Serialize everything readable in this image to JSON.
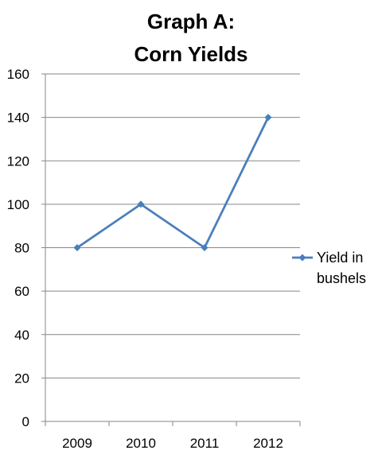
{
  "chart_data": {
    "type": "line",
    "title_lines": [
      "Graph A:",
      "Corn Yields"
    ],
    "categories": [
      "2009",
      "2010",
      "2011",
      "2012"
    ],
    "series": [
      {
        "name_lines": [
          "Yield in",
          "bushels"
        ],
        "values": [
          80,
          100,
          80,
          140
        ],
        "color": "#4A7EBB",
        "marker": "diamond"
      }
    ],
    "y_ticks": [
      "0",
      "20",
      "40",
      "60",
      "80",
      "100",
      "120",
      "140",
      "160"
    ],
    "ylim": [
      0,
      160
    ],
    "y_step": 20,
    "xlabel": "",
    "ylabel": "",
    "grid": "horizontal major gridlines",
    "legend_position": "right",
    "axis_color": "#868686",
    "gridline_color": "#868686"
  }
}
